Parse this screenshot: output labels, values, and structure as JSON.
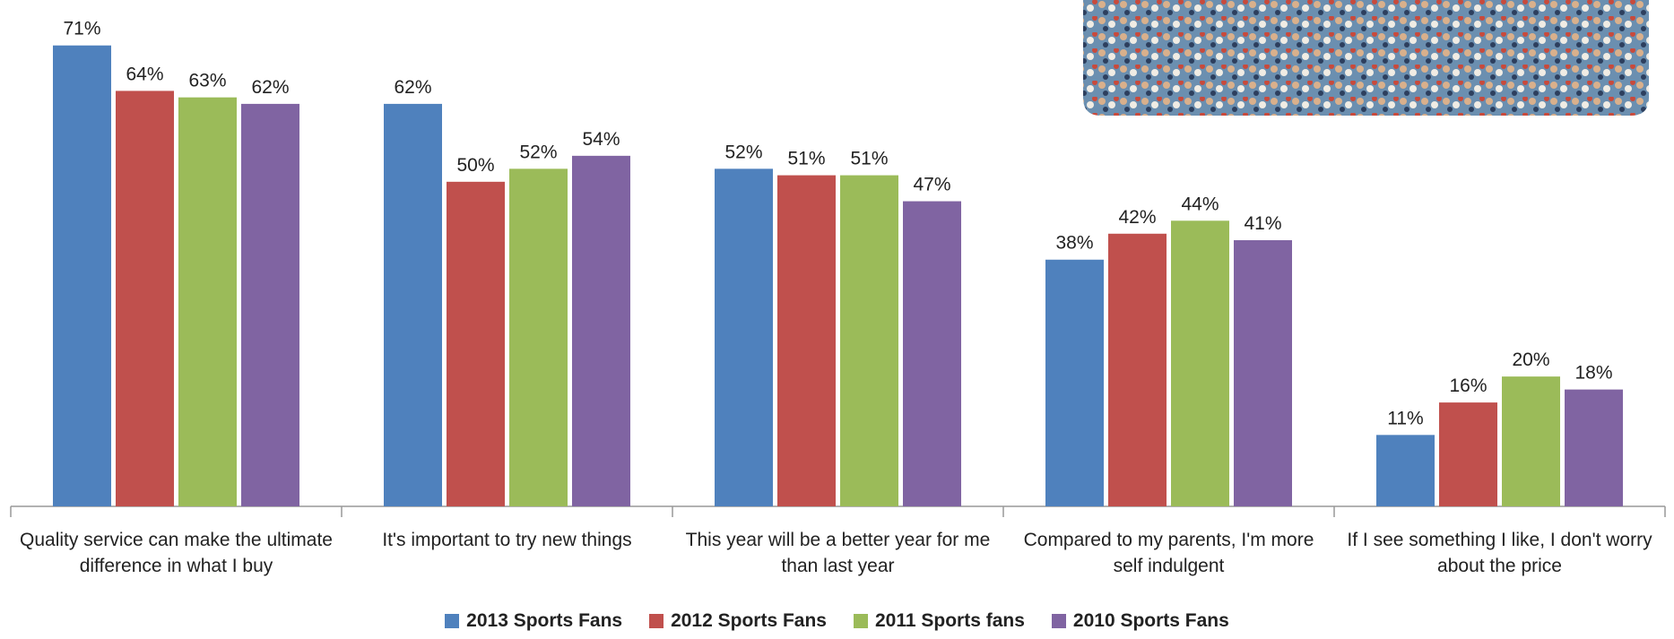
{
  "chart_data": {
    "type": "bar",
    "categories": [
      "Quality service can make the ultimate difference in what I buy",
      "It's important to try new things",
      "This year will be a better year for me than last year",
      "Compared to my parents, I'm more self indulgent",
      "If I see something I like, I don't worry about the price"
    ],
    "series": [
      {
        "name": "2013 Sports Fans",
        "color": "#4f81bd",
        "values": [
          71,
          62,
          52,
          38,
          11
        ],
        "value_labels": [
          "71%",
          "62%",
          "52%",
          "38%",
          "11%"
        ]
      },
      {
        "name": "2012 Sports Fans",
        "color": "#c0504d",
        "values": [
          64,
          50,
          51,
          42,
          16
        ],
        "value_labels": [
          "64%",
          "50%",
          "51%",
          "42%",
          "16%"
        ]
      },
      {
        "name": "2011 Sports fans",
        "color": "#9bbb59",
        "values": [
          63,
          52,
          51,
          44,
          20
        ],
        "value_labels": [
          "63%",
          "52%",
          "51%",
          "44%",
          "20%"
        ]
      },
      {
        "name": "2010 Sports Fans",
        "color": "#8064a2",
        "values": [
          62,
          54,
          47,
          41,
          18
        ],
        "value_labels": [
          "62%",
          "54%",
          "47%",
          "41%",
          "18%"
        ]
      }
    ],
    "ylim": [
      0,
      78
    ]
  }
}
